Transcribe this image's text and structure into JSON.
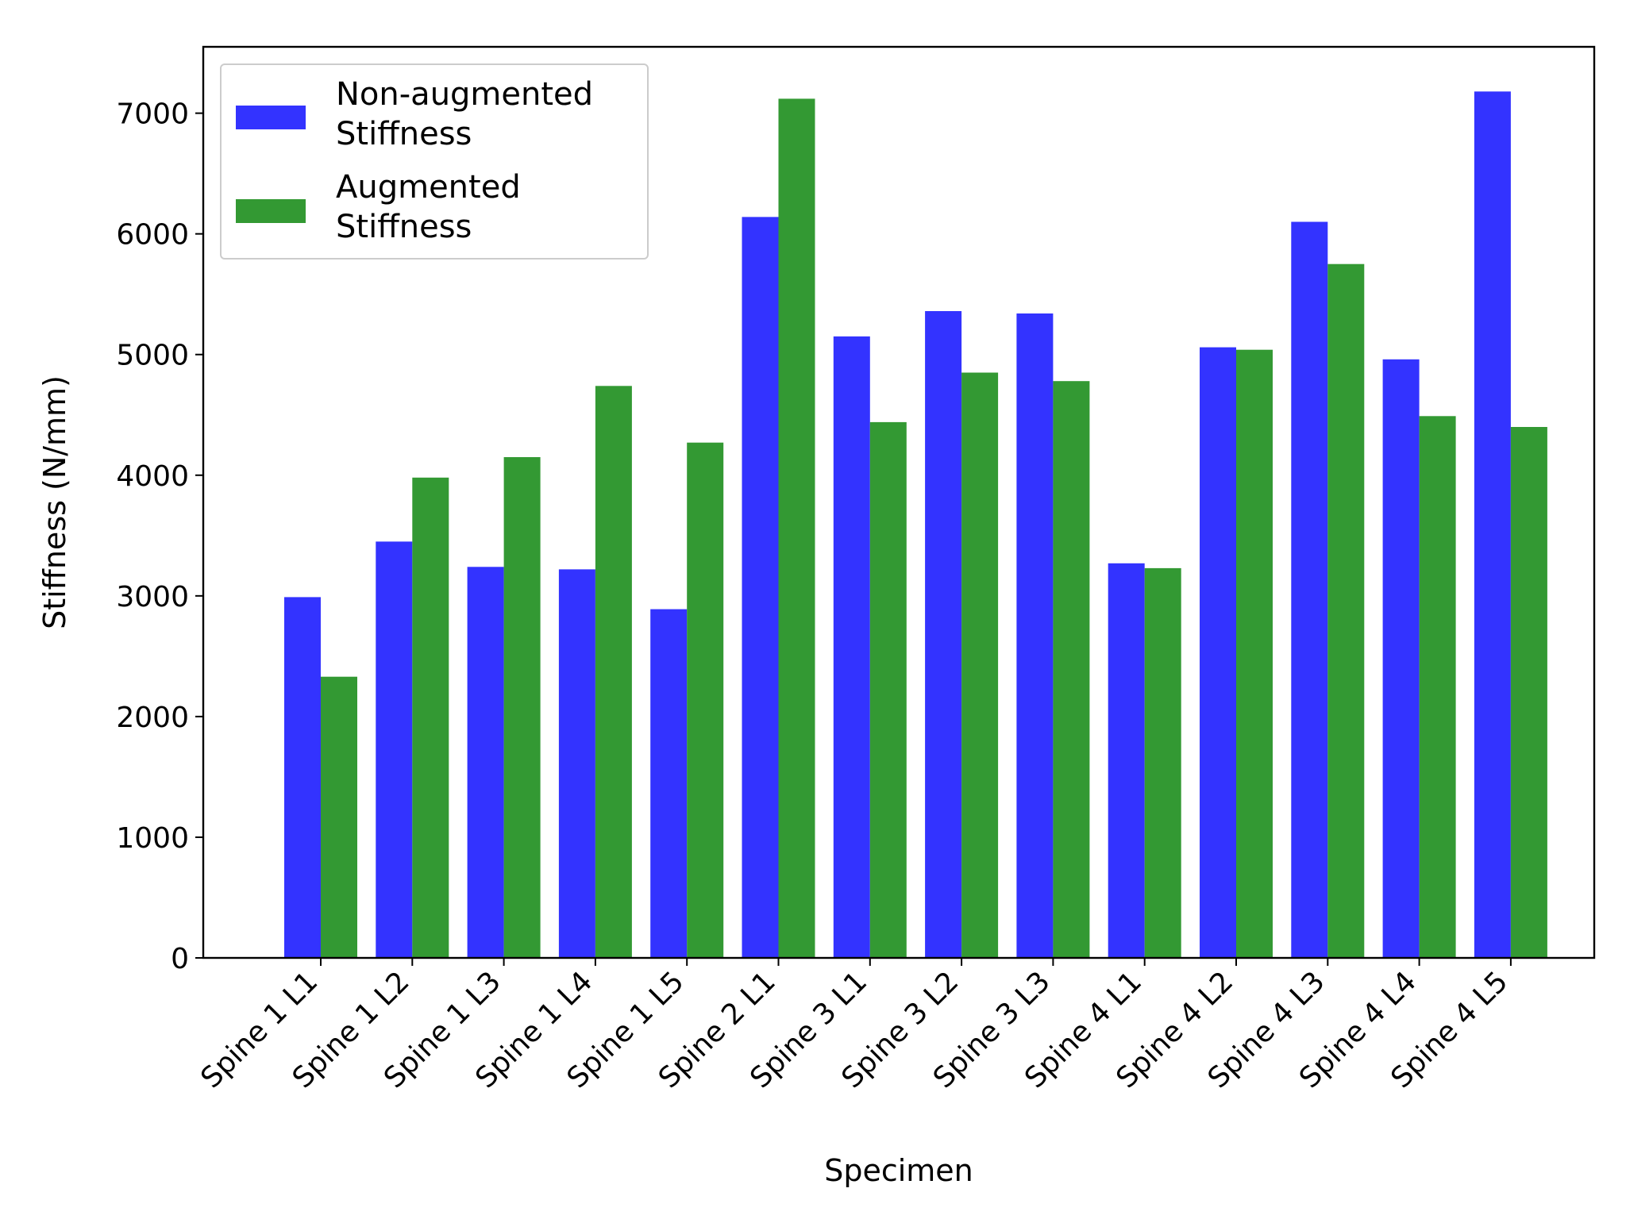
{
  "chart_data": {
    "type": "bar",
    "title": "",
    "xlabel": "Specimen",
    "ylabel": "Stiffness (N/mm)",
    "ylim": [
      0,
      7550
    ],
    "yticks": [
      0,
      1000,
      2000,
      3000,
      4000,
      5000,
      6000,
      7000
    ],
    "grid": false,
    "legend_position": "top-left",
    "categories": [
      "Spine 1 L1",
      "Spine 1 L2",
      "Spine 1 L3",
      "Spine 1 L4",
      "Spine 1 L5",
      "Spine 2 L1",
      "Spine 3 L1",
      "Spine 3 L2",
      "Spine 3 L3",
      "Spine 4 L1",
      "Spine 4 L2",
      "Spine 4 L3",
      "Spine 4 L4",
      "Spine 4 L5"
    ],
    "series": [
      {
        "name": [
          "Non-augmented",
          "Stiffness"
        ],
        "color": "#3333ff",
        "values": [
          2990,
          3450,
          3240,
          3220,
          2890,
          6140,
          5150,
          5360,
          5340,
          3270,
          5060,
          6100,
          4960,
          7180
        ]
      },
      {
        "name": [
          "Augmented",
          "Stiffness"
        ],
        "color": "#339933",
        "values": [
          2330,
          3980,
          4150,
          4740,
          4270,
          7120,
          4440,
          4850,
          4780,
          3230,
          5040,
          5750,
          4490,
          4400
        ]
      }
    ]
  }
}
